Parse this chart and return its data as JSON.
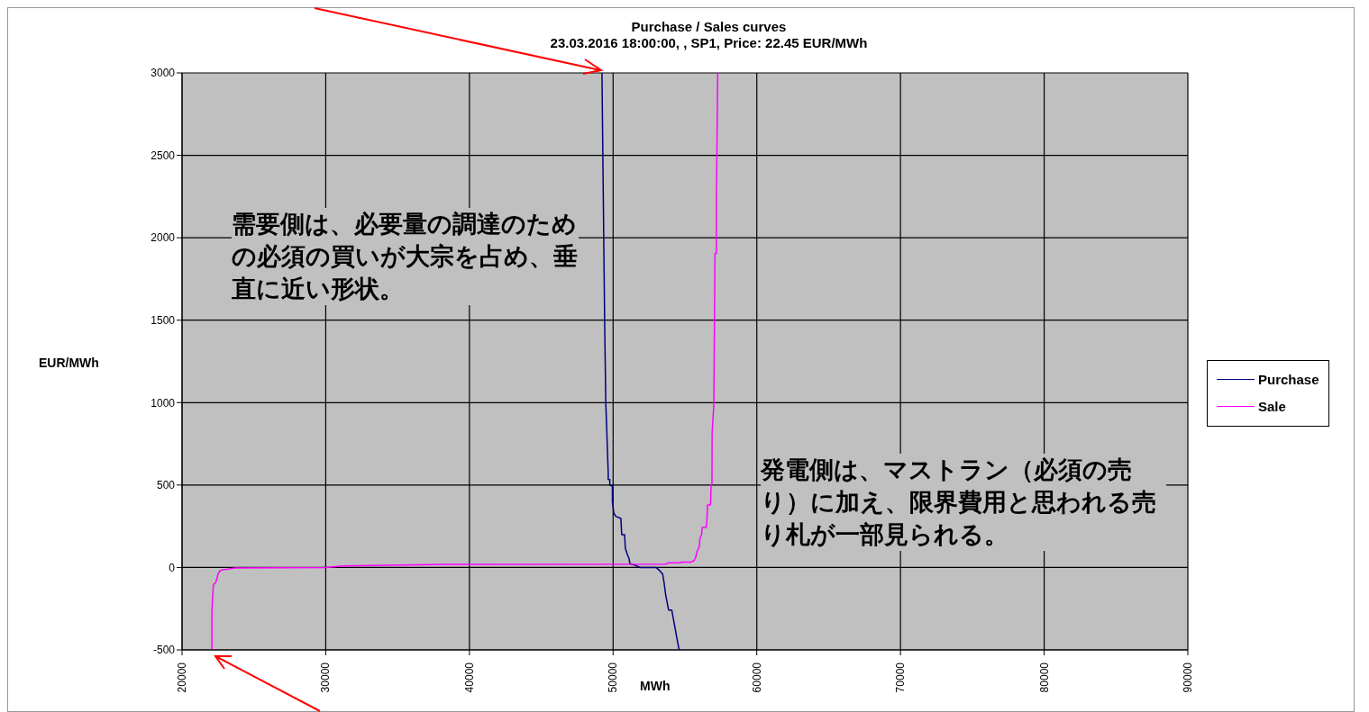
{
  "chart_data": {
    "type": "line",
    "title": "Purchase / Sales curves",
    "subtitle": "23.03.2016 18:00:00,  , SP1, Price: 22.45 EUR/MWh",
    "xlabel": "MWh",
    "ylabel": "EUR/MWh",
    "xlim": [
      20000,
      90000
    ],
    "xticks": [
      20000,
      30000,
      40000,
      50000,
      60000,
      70000,
      80000,
      90000
    ],
    "ylim": [
      -500,
      3000
    ],
    "yticks": [
      -500,
      0,
      500,
      1000,
      1500,
      2000,
      2500,
      3000
    ],
    "grid": true,
    "legend": "right",
    "marker": "none",
    "line_style": "solid",
    "annotations": [
      "需要側は、必要量の調達のための必須の買いが大宗を占め、垂直に近い形状。",
      "発電側は、マストラン（必須の売り）に加え、限界費用と思われる売り札が一部見られる。"
    ],
    "series": [
      {
        "name": "Purchase",
        "color": "#000080",
        "x": [
          49224,
          49410,
          49490,
          49660,
          49660,
          49770,
          49770,
          49950,
          49950,
          50050,
          50180,
          50540,
          50600,
          50800,
          50850,
          50990,
          51120,
          51160,
          51470,
          51890,
          52990,
          53240,
          53450,
          53550,
          53660,
          53860,
          54080,
          54590
        ],
        "values": [
          3000,
          1500,
          1000,
          576,
          534,
          534,
          499,
          494,
          397,
          330,
          310,
          297,
          199,
          199,
          117,
          79,
          51,
          24,
          15,
          0,
          0,
          -19,
          -40,
          -94,
          -167,
          -258,
          -258,
          -500
        ]
      },
      {
        "name": "Sale",
        "color": "#ff00ff",
        "x": [
          22080,
          22080,
          22180,
          22330,
          22430,
          22500,
          22640,
          22750,
          23060,
          23690,
          30035,
          31180,
          38360,
          53660,
          53850,
          54700,
          54760,
          55430,
          55640,
          55740,
          55850,
          55990,
          56050,
          56160,
          56200,
          56470,
          56530,
          56570,
          56780,
          56820,
          56880,
          56890,
          57010,
          57090,
          57190,
          57190,
          57280
        ],
        "values": [
          -500,
          -258,
          -103,
          -94,
          -67,
          -40,
          -21,
          -16,
          -12,
          -3,
          0,
          9,
          19,
          20,
          28,
          28,
          33,
          33,
          42,
          60,
          97,
          124,
          179,
          199,
          243,
          243,
          288,
          379,
          379,
          498,
          503,
          816,
          985,
          1905,
          1905,
          2227,
          3000
        ]
      }
    ]
  }
}
